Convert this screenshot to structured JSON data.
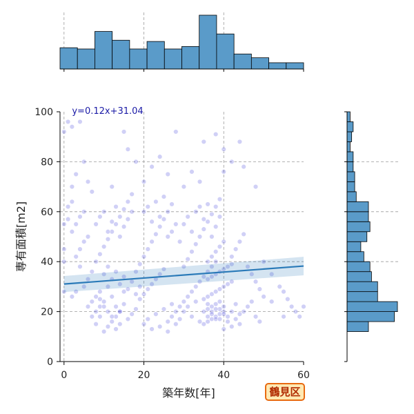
{
  "chart_data": {
    "type": "scatter",
    "xlabel": "築年数[年]",
    "ylabel": "専有面積[m2]",
    "xlim": [
      -1,
      60
    ],
    "ylim": [
      0,
      100
    ],
    "xticks": [
      0,
      20,
      40,
      60
    ],
    "yticks": [
      0,
      20,
      40,
      60,
      80,
      100
    ],
    "grid": true,
    "equation_label": "y=0.12x+31.04",
    "regression": {
      "slope": 0.12,
      "intercept": 31.04,
      "color": "#2a7ab8"
    },
    "point_color": "#2b2bd4",
    "hist_color": "#5a9bc9",
    "badge": "鶴見区",
    "points": [
      [
        10,
        12
      ],
      [
        11,
        14
      ],
      [
        12,
        16
      ],
      [
        13,
        18
      ],
      [
        14,
        20
      ],
      [
        9,
        22
      ],
      [
        10,
        24
      ],
      [
        12,
        26
      ],
      [
        15,
        28
      ],
      [
        11,
        30
      ],
      [
        8,
        15
      ],
      [
        7,
        18
      ],
      [
        6,
        22
      ],
      [
        9,
        25
      ],
      [
        13,
        13
      ],
      [
        14,
        15
      ],
      [
        16,
        17
      ],
      [
        17,
        19
      ],
      [
        18,
        21
      ],
      [
        15,
        23
      ],
      [
        19,
        25
      ],
      [
        20,
        27
      ],
      [
        21,
        29
      ],
      [
        22,
        31
      ],
      [
        23,
        33
      ],
      [
        24,
        35
      ],
      [
        25,
        37
      ],
      [
        26,
        16
      ],
      [
        27,
        18
      ],
      [
        28,
        20
      ],
      [
        29,
        22
      ],
      [
        30,
        24
      ],
      [
        31,
        26
      ],
      [
        32,
        28
      ],
      [
        33,
        30
      ],
      [
        34,
        32
      ],
      [
        35,
        34
      ],
      [
        36,
        36
      ],
      [
        37,
        38
      ],
      [
        38,
        40
      ],
      [
        35,
        15
      ],
      [
        36,
        16
      ],
      [
        37,
        17
      ],
      [
        38,
        18
      ],
      [
        39,
        19
      ],
      [
        40,
        20
      ],
      [
        36,
        21
      ],
      [
        37,
        22
      ],
      [
        38,
        23
      ],
      [
        39,
        24
      ],
      [
        35,
        25
      ],
      [
        36,
        26
      ],
      [
        37,
        27
      ],
      [
        38,
        28
      ],
      [
        39,
        29
      ],
      [
        40,
        30
      ],
      [
        41,
        31
      ],
      [
        42,
        32
      ],
      [
        36,
        33
      ],
      [
        37,
        34
      ],
      [
        38,
        35
      ],
      [
        39,
        36
      ],
      [
        40,
        37
      ],
      [
        41,
        38
      ],
      [
        42,
        39
      ],
      [
        36,
        40
      ],
      [
        37,
        42
      ],
      [
        38,
        44
      ],
      [
        39,
        46
      ],
      [
        40,
        48
      ],
      [
        3,
        42
      ],
      [
        4,
        45
      ],
      [
        5,
        48
      ],
      [
        6,
        50
      ],
      [
        2,
        52
      ],
      [
        3,
        55
      ],
      [
        4,
        58
      ],
      [
        5,
        60
      ],
      [
        1,
        62
      ],
      [
        2,
        64
      ],
      [
        8,
        40
      ],
      [
        9,
        43
      ],
      [
        10,
        46
      ],
      [
        11,
        49
      ],
      [
        12,
        52
      ],
      [
        13,
        55
      ],
      [
        14,
        58
      ],
      [
        15,
        61
      ],
      [
        16,
        64
      ],
      [
        17,
        67
      ],
      [
        18,
        36
      ],
      [
        19,
        39
      ],
      [
        20,
        42
      ],
      [
        21,
        45
      ],
      [
        22,
        48
      ],
      [
        23,
        51
      ],
      [
        24,
        54
      ],
      [
        25,
        57
      ],
      [
        26,
        60
      ],
      [
        27,
        63
      ],
      [
        30,
        38
      ],
      [
        31,
        41
      ],
      [
        32,
        44
      ],
      [
        33,
        47
      ],
      [
        34,
        50
      ],
      [
        35,
        53
      ],
      [
        36,
        56
      ],
      [
        37,
        59
      ],
      [
        38,
        62
      ],
      [
        39,
        65
      ],
      [
        42,
        42
      ],
      [
        43,
        45
      ],
      [
        44,
        48
      ],
      [
        45,
        51
      ],
      [
        46,
        38
      ],
      [
        47,
        35
      ],
      [
        48,
        32
      ],
      [
        49,
        29
      ],
      [
        50,
        26
      ],
      [
        52,
        24
      ],
      [
        0,
        92
      ],
      [
        1,
        96
      ],
      [
        2,
        94
      ],
      [
        4,
        96
      ],
      [
        5,
        80
      ],
      [
        3,
        75
      ],
      [
        2,
        70
      ],
      [
        6,
        72
      ],
      [
        7,
        68
      ],
      [
        1,
        57
      ],
      [
        15,
        92
      ],
      [
        16,
        85
      ],
      [
        18,
        80
      ],
      [
        22,
        78
      ],
      [
        24,
        82
      ],
      [
        26,
        75
      ],
      [
        28,
        92
      ],
      [
        30,
        70
      ],
      [
        32,
        76
      ],
      [
        35,
        88
      ],
      [
        38,
        91
      ],
      [
        40,
        85
      ],
      [
        42,
        80
      ],
      [
        44,
        88
      ],
      [
        45,
        78
      ],
      [
        48,
        70
      ],
      [
        40,
        76
      ],
      [
        34,
        72
      ],
      [
        20,
        72
      ],
      [
        12,
        70
      ],
      [
        5,
        30
      ],
      [
        6,
        33
      ],
      [
        7,
        36
      ],
      [
        4,
        38
      ],
      [
        3,
        28
      ],
      [
        2,
        26
      ],
      [
        0,
        28
      ],
      [
        0,
        40
      ],
      [
        0,
        45
      ],
      [
        0,
        55
      ],
      [
        50,
        40
      ],
      [
        52,
        35
      ],
      [
        54,
        30
      ],
      [
        55,
        28
      ],
      [
        56,
        25
      ],
      [
        57,
        22
      ],
      [
        58,
        20
      ],
      [
        59,
        18
      ],
      [
        60,
        22
      ],
      [
        55,
        18
      ],
      [
        45,
        20
      ],
      [
        46,
        22
      ],
      [
        47,
        24
      ],
      [
        48,
        18
      ],
      [
        49,
        16
      ],
      [
        44,
        15
      ],
      [
        43,
        17
      ],
      [
        42,
        14
      ],
      [
        41,
        16
      ],
      [
        40,
        13
      ],
      [
        10,
        35
      ],
      [
        11,
        38
      ],
      [
        12,
        33
      ],
      [
        13,
        36
      ],
      [
        14,
        31
      ],
      [
        15,
        34
      ],
      [
        16,
        29
      ],
      [
        17,
        32
      ],
      [
        18,
        27
      ],
      [
        19,
        30
      ],
      [
        20,
        15
      ],
      [
        21,
        17
      ],
      [
        22,
        13
      ],
      [
        23,
        19
      ],
      [
        24,
        14
      ],
      [
        25,
        21
      ],
      [
        26,
        12
      ],
      [
        27,
        23
      ],
      [
        28,
        15
      ],
      [
        29,
        17
      ],
      [
        30,
        55
      ],
      [
        31,
        58
      ],
      [
        32,
        52
      ],
      [
        33,
        60
      ],
      [
        34,
        62
      ],
      [
        35,
        57
      ],
      [
        36,
        63
      ],
      [
        37,
        50
      ],
      [
        38,
        54
      ],
      [
        39,
        58
      ],
      [
        8,
        55
      ],
      [
        9,
        58
      ],
      [
        10,
        60
      ],
      [
        11,
        52
      ],
      [
        12,
        56
      ],
      [
        13,
        62
      ],
      [
        14,
        50
      ],
      [
        15,
        54
      ],
      [
        16,
        57
      ],
      [
        17,
        60
      ],
      [
        20,
        60
      ],
      [
        21,
        62
      ],
      [
        22,
        56
      ],
      [
        23,
        64
      ],
      [
        24,
        58
      ],
      [
        25,
        66
      ],
      [
        26,
        50
      ],
      [
        27,
        52
      ],
      [
        28,
        55
      ],
      [
        29,
        48
      ],
      [
        30,
        20
      ],
      [
        31,
        22
      ],
      [
        32,
        18
      ],
      [
        33,
        24
      ],
      [
        34,
        16
      ],
      [
        35,
        20
      ],
      [
        36,
        18
      ],
      [
        37,
        20
      ],
      [
        38,
        17
      ],
      [
        39,
        21
      ],
      [
        40,
        22
      ],
      [
        41,
        18
      ],
      [
        42,
        20
      ],
      [
        43,
        23
      ],
      [
        44,
        19
      ],
      [
        36,
        23
      ],
      [
        37,
        19
      ],
      [
        38,
        21
      ],
      [
        39,
        17
      ],
      [
        40,
        19
      ],
      [
        8,
        20
      ],
      [
        9,
        18
      ],
      [
        10,
        22
      ],
      [
        11,
        20
      ],
      [
        12,
        18
      ],
      [
        13,
        22
      ],
      [
        14,
        20
      ],
      [
        7,
        24
      ],
      [
        8,
        26
      ],
      [
        9,
        28
      ]
    ]
  }
}
